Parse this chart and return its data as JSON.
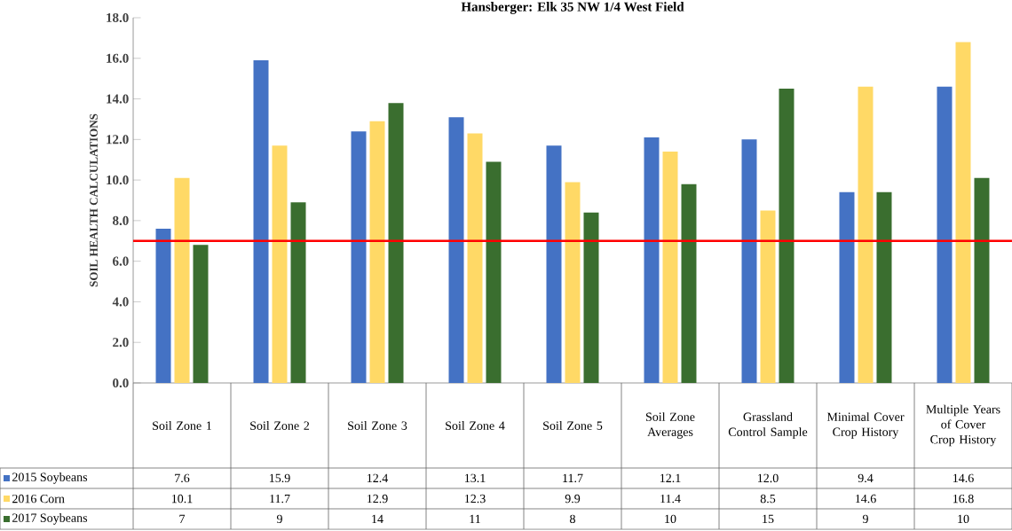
{
  "chart_data": {
    "type": "bar",
    "title": "Hansberger: Elk 35 NW 1/4 West Field",
    "ylabel": "SOIL HEALTH CALCULATIONS",
    "categories": [
      "Soil Zone 1",
      "Soil Zone 2",
      "Soil Zone 3",
      "Soil Zone 4",
      "Soil Zone 5",
      "Soil Zone Averages",
      "Grassland Control Sample",
      "Minimal Cover Crop History",
      "Multiple Years of Cover Crop History"
    ],
    "series": [
      {
        "name": "2015 Soybeans",
        "color": "#4472c4",
        "values": [
          7.6,
          15.9,
          12.4,
          13.1,
          11.7,
          12.1,
          12.0,
          9.4,
          14.6
        ],
        "value_labels": [
          "7.6",
          "15.9",
          "12.4",
          "13.1",
          "11.7",
          "12.1",
          "12.0",
          "9.4",
          "14.6"
        ]
      },
      {
        "name": "2016 Corn",
        "color": "#ffd966",
        "values": [
          10.1,
          11.7,
          12.9,
          12.3,
          9.9,
          11.4,
          8.5,
          14.6,
          16.8
        ],
        "value_labels": [
          "10.1",
          "11.7",
          "12.9",
          "12.3",
          "9.9",
          "11.4",
          "8.5",
          "14.6",
          "16.8"
        ]
      },
      {
        "name": "2017 Soybeans",
        "color": "#3a6e2f",
        "values": [
          6.8,
          8.9,
          13.8,
          10.9,
          8.4,
          9.8,
          14.5,
          9.4,
          10.1
        ],
        "value_labels": [
          "7",
          "9",
          "14",
          "11",
          "8",
          "10",
          "15",
          "9",
          "10"
        ]
      }
    ],
    "ylim": [
      0,
      18
    ],
    "yticks": [
      {
        "value": 0,
        "label": "0.0"
      },
      {
        "value": 2,
        "label": "2.0"
      },
      {
        "value": 4,
        "label": "4.0"
      },
      {
        "value": 6,
        "label": "6.0"
      },
      {
        "value": 8,
        "label": "8.0"
      },
      {
        "value": 10,
        "label": "10.0"
      },
      {
        "value": 12,
        "label": "12.0"
      },
      {
        "value": 14,
        "label": "14.0"
      },
      {
        "value": 16,
        "label": "16.0"
      },
      {
        "value": 18,
        "label": "18.0"
      }
    ],
    "ref_lines": [
      {
        "axis": "y",
        "value": 7.0,
        "color": "#ff0000"
      }
    ],
    "legend": "bottom left",
    "grid": false
  }
}
